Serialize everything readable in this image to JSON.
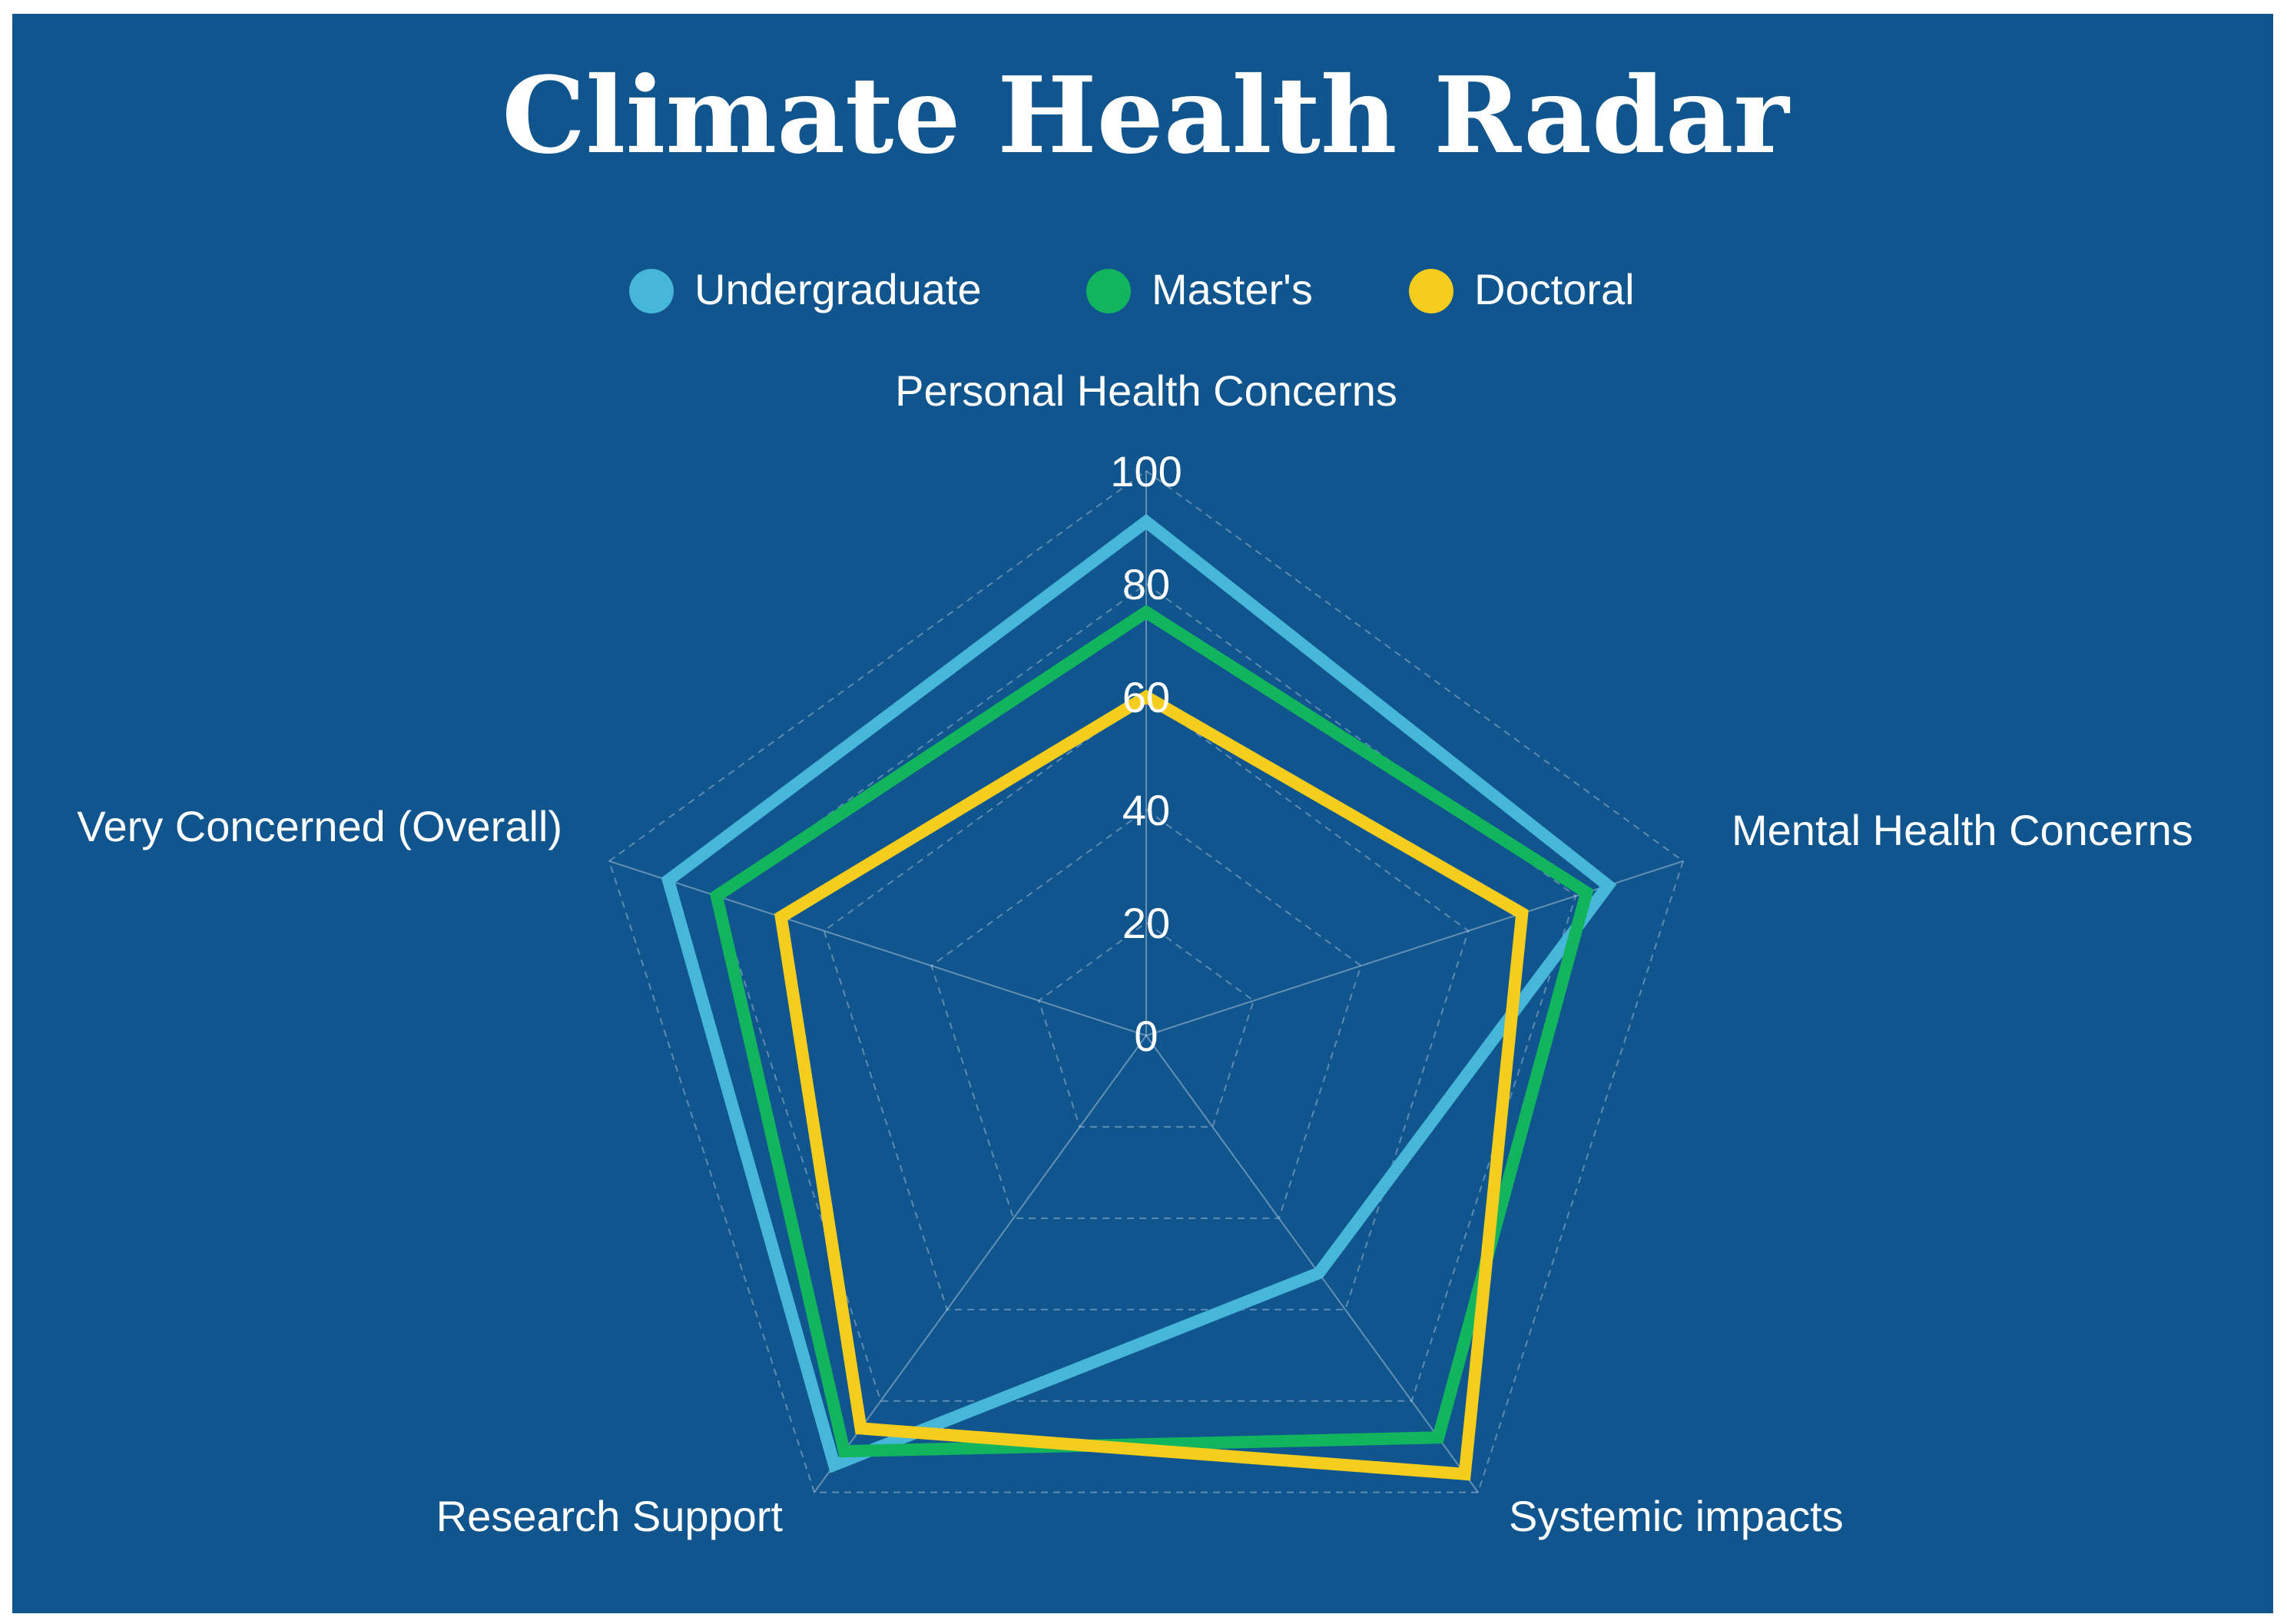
{
  "chart_data": {
    "type": "radar",
    "title": "Climate Health Radar",
    "axes": [
      "Personal Health Concerns",
      "Mental Health Concerns",
      "Systemic impacts",
      "Research Support",
      "Very Concerned (Overall)"
    ],
    "rlim": [
      0,
      100
    ],
    "ticks": [
      "0",
      "20",
      "40",
      "60",
      "80",
      "100"
    ],
    "grid": true,
    "legend_position": "top-center",
    "series": [
      {
        "name": "Undergraduate",
        "color": "#46b6d9",
        "values": [
          91,
          86,
          52,
          94,
          89
        ]
      },
      {
        "name": "Master's",
        "color": "#12b55e",
        "values": [
          75,
          82,
          88,
          91,
          80
        ]
      },
      {
        "name": "Doctoral",
        "color": "#f5ce1d",
        "values": [
          60,
          70,
          96,
          86,
          68
        ]
      }
    ]
  }
}
